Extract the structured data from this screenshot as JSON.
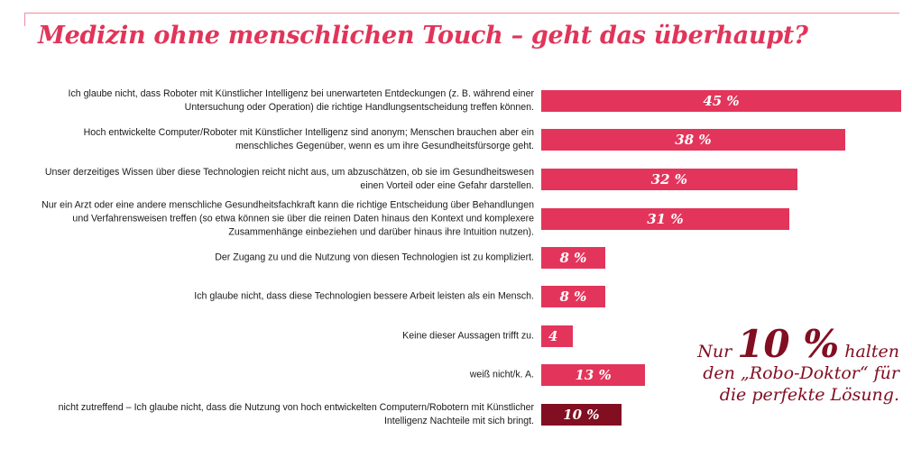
{
  "chart_data": {
    "type": "bar",
    "orientation": "horizontal",
    "title": "Medizin ohne menschlichen Touch – geht das überhaupt?",
    "xlim": [
      0,
      45
    ],
    "categories": [
      "Ich glaube nicht, dass Roboter mit Künstlicher Intelligenz bei unerwarteten Entdeckungen (z. B. während einer Untersuchung oder Operation) die richtige Handlungsentscheidung treffen können.",
      "Hoch entwickelte Computer/Roboter mit Künstlicher Intelligenz sind anonym; Menschen brauchen aber ein menschliches Gegenüber, wenn es um ihre Gesundheitsfürsorge geht.",
      "Unser derzeitiges Wissen über diese Technologien reicht nicht aus, um abzuschätzen, ob sie im Gesundheitswesen einen Vorteil oder eine Gefahr darstellen.",
      "Nur ein Arzt oder eine andere menschliche Gesundheitsfachkraft kann die richtige Entscheidung über Behandlungen und Verfahrensweisen treffen (so etwa können sie über die reinen Daten hinaus den Kontext und komplexere Zusammenhänge einbeziehen und darüber hinaus ihre Intuition nutzen).",
      "Der Zugang zu und die Nutzung von diesen Technologien ist zu kompliziert.",
      "Ich glaube nicht, dass diese Technologien bessere Arbeit leisten als ein Mensch.",
      "Keine dieser Aussagen trifft zu.",
      "weiß nicht/k. A.",
      "nicht zutreffend – Ich glaube nicht, dass die Nutzung von hoch entwickelten Computern/Robotern mit Künstlicher Intelligenz Nachteile mit sich bringt."
    ],
    "values": [
      45,
      38,
      32,
      31,
      8,
      8,
      4,
      13,
      10
    ],
    "value_labels": [
      "45 %",
      "38 %",
      "32 %",
      "31 %",
      "8 %",
      "8 %",
      "4",
      "13 %",
      "10 %"
    ],
    "highlight_index": 8,
    "colors": {
      "bar": "#e3355b",
      "highlight": "#820e22",
      "title": "#e0355a"
    }
  },
  "callout": {
    "prefix": "Nur",
    "value": "10 %",
    "suffix": "halten",
    "line2": "den „Robo-Doktor“ für",
    "line3": "die  perfekte Lösung."
  }
}
